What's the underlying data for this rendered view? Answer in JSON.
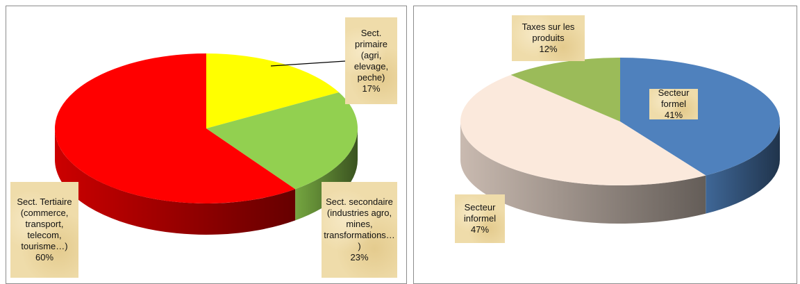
{
  "chart_data": [
    {
      "type": "pie",
      "categories": [
        "Sect. primaire (agri, elevage, peche)",
        "Sect. secondaire (industries agro, mines, transformations…)",
        "Sect. Tertiaire (commerce, transport, telecom, tourisme…)"
      ],
      "values": [
        17,
        23,
        60
      ],
      "value_labels": [
        "17%",
        "23%",
        "60%"
      ],
      "colors": [
        "#ffff00",
        "#92d050",
        "#ff0000"
      ]
    },
    {
      "type": "pie",
      "categories": [
        "Secteur formel",
        "Secteur informel",
        "Taxes sur les produits"
      ],
      "values": [
        41,
        47,
        12
      ],
      "value_labels": [
        "41%",
        "47%",
        "12%"
      ],
      "colors": [
        "#4f81bd",
        "#fbe9dc",
        "#9bbb59"
      ]
    }
  ]
}
